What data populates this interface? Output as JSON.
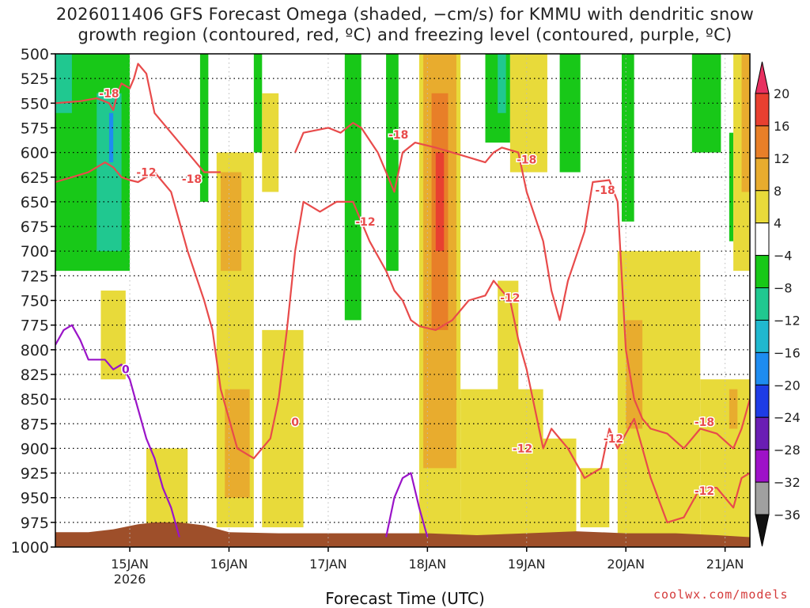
{
  "chart_data": {
    "type": "heatmap",
    "title_line1": "2026011406 GFS Forecast Omega (shaded, −cm/s) for KMMU with dendritic snow",
    "title_line2": "growth region (contoured, red, ºC) and freezing level (contoured, purple, ºC)",
    "xlabel": "Forecast Time (UTC)",
    "credit": "coolwx.com/models",
    "x_range_hours": [
      6,
      174
    ],
    "x_ticks": [
      {
        "hour": 24,
        "label": "15JAN",
        "sublabel": "2026"
      },
      {
        "hour": 48,
        "label": "16JAN"
      },
      {
        "hour": 72,
        "label": "17JAN"
      },
      {
        "hour": 96,
        "label": "18JAN"
      },
      {
        "hour": 120,
        "label": "19JAN"
      },
      {
        "hour": 144,
        "label": "20JAN"
      },
      {
        "hour": 168,
        "label": "21JAN"
      }
    ],
    "y_range_hpa": [
      1000,
      500
    ],
    "y_ticks": [
      500,
      525,
      550,
      575,
      600,
      625,
      650,
      675,
      700,
      725,
      750,
      775,
      800,
      825,
      850,
      875,
      900,
      925,
      950,
      975,
      1000
    ],
    "colorbar": {
      "labels": [
        "20",
        "16",
        "12",
        "8",
        "4",
        "−4",
        "−8",
        "−12",
        "−16",
        "−20",
        "−24",
        "−28",
        "−32",
        "−36"
      ],
      "colors_top_to_bottom": [
        "#e83060",
        "#e84030",
        "#e87f28",
        "#e8ac2e",
        "#e8da3a",
        "#ffffff",
        "#18c818",
        "#20c890",
        "#20b8cf",
        "#1e8cf0",
        "#1e3ce6",
        "#6a1eb4",
        "#9e12c8",
        "#a0a0a0",
        "#111111"
      ]
    },
    "shading_regions": [
      {
        "color": "#18c818",
        "h0": 6,
        "h1": 24,
        "p0": 500,
        "p1": 720
      },
      {
        "color": "#20c890",
        "h0": 6,
        "h1": 10,
        "p0": 500,
        "p1": 560
      },
      {
        "color": "#20c890",
        "h0": 16,
        "h1": 22,
        "p0": 540,
        "p1": 700
      },
      {
        "color": "#1e8cf0",
        "h0": 19,
        "h1": 20,
        "p0": 560,
        "p1": 610
      },
      {
        "color": "#18c818",
        "h0": 41,
        "h1": 43,
        "p0": 500,
        "p1": 650
      },
      {
        "color": "#18c818",
        "h0": 54,
        "h1": 56,
        "p0": 500,
        "p1": 600
      },
      {
        "color": "#18c818",
        "h0": 76,
        "h1": 80,
        "p0": 500,
        "p1": 770
      },
      {
        "color": "#18c818",
        "h0": 86,
        "h1": 89,
        "p0": 500,
        "p1": 720
      },
      {
        "color": "#18c818",
        "h0": 110,
        "h1": 116,
        "p0": 500,
        "p1": 590
      },
      {
        "color": "#20c890",
        "h0": 113,
        "h1": 115,
        "p0": 500,
        "p1": 560
      },
      {
        "color": "#18c818",
        "h0": 128,
        "h1": 133,
        "p0": 500,
        "p1": 620
      },
      {
        "color": "#18c818",
        "h0": 143,
        "h1": 146,
        "p0": 500,
        "p1": 670
      },
      {
        "color": "#20c890",
        "h0": 163,
        "h1": 165,
        "p0": 500,
        "p1": 580
      },
      {
        "color": "#18c818",
        "h0": 160,
        "h1": 167,
        "p0": 500,
        "p1": 600
      },
      {
        "color": "#18c818",
        "h0": 169,
        "h1": 170,
        "p0": 580,
        "p1": 690
      },
      {
        "color": "#e8da3a",
        "h0": 94,
        "h1": 104,
        "p0": 500,
        "p1": 990
      },
      {
        "color": "#e8ac2e",
        "h0": 95,
        "h1": 103,
        "p0": 500,
        "p1": 920
      },
      {
        "color": "#e87f28",
        "h0": 97,
        "h1": 101,
        "p0": 540,
        "p1": 780
      },
      {
        "color": "#e84030",
        "h0": 98,
        "h1": 100,
        "p0": 600,
        "p1": 700
      },
      {
        "color": "#e8da3a",
        "h0": 45,
        "h1": 54,
        "p0": 600,
        "p1": 980
      },
      {
        "color": "#e8ac2e",
        "h0": 46,
        "h1": 51,
        "p0": 620,
        "p1": 720
      },
      {
        "color": "#e8ac2e",
        "h0": 47,
        "h1": 53,
        "p0": 840,
        "p1": 950
      },
      {
        "color": "#e8da3a",
        "h0": 56,
        "h1": 66,
        "p0": 780,
        "p1": 980
      },
      {
        "color": "#e8da3a",
        "h0": 104,
        "h1": 124,
        "p0": 840,
        "p1": 990
      },
      {
        "color": "#e8da3a",
        "h0": 113,
        "h1": 118,
        "p0": 730,
        "p1": 860
      },
      {
        "color": "#e8da3a",
        "h0": 123,
        "h1": 132,
        "p0": 890,
        "p1": 990
      },
      {
        "color": "#e8da3a",
        "h0": 133,
        "h1": 140,
        "p0": 920,
        "p1": 980
      },
      {
        "color": "#e8da3a",
        "h0": 142,
        "h1": 162,
        "p0": 700,
        "p1": 990
      },
      {
        "color": "#e8ac2e",
        "h0": 144,
        "h1": 148,
        "p0": 770,
        "p1": 880
      },
      {
        "color": "#e8da3a",
        "h0": 162,
        "h1": 174,
        "p0": 830,
        "p1": 990
      },
      {
        "color": "#e8ac2e",
        "h0": 169,
        "h1": 171,
        "p0": 840,
        "p1": 880
      },
      {
        "color": "#e8da3a",
        "h0": 170,
        "h1": 174,
        "p0": 500,
        "p1": 720
      },
      {
        "color": "#e8ac2e",
        "h0": 172,
        "h1": 174,
        "p0": 500,
        "p1": 640
      },
      {
        "color": "#e8da3a",
        "h0": 17,
        "h1": 23,
        "p0": 740,
        "p1": 830
      },
      {
        "color": "#e8da3a",
        "h0": 28,
        "h1": 38,
        "p0": 900,
        "p1": 980
      },
      {
        "color": "#e8da3a",
        "h0": 116,
        "h1": 125,
        "p0": 500,
        "p1": 620
      },
      {
        "color": "#e8da3a",
        "h0": 56,
        "h1": 60,
        "p0": 540,
        "p1": 640
      }
    ],
    "contours": [
      {
        "name": "dgz-minus-18-upper",
        "color": "#e84b4b",
        "points": [
          [
            6,
            550
          ],
          [
            12,
            548
          ],
          [
            16,
            545
          ],
          [
            19,
            550
          ],
          [
            20,
            557
          ],
          [
            21,
            540
          ],
          [
            22,
            530
          ],
          [
            24,
            535
          ],
          [
            25,
            525
          ],
          [
            26,
            510
          ],
          [
            28,
            520
          ],
          [
            30,
            560
          ],
          [
            34,
            580
          ],
          [
            38,
            600
          ],
          [
            42,
            620
          ],
          [
            46,
            620
          ]
        ]
      },
      {
        "name": "dgz-minus-18-mid",
        "color": "#e84b4b",
        "points": [
          [
            64,
            600
          ],
          [
            66,
            580
          ],
          [
            72,
            575
          ],
          [
            75,
            580
          ],
          [
            78,
            570
          ],
          [
            80,
            575
          ],
          [
            84,
            600
          ],
          [
            86,
            620
          ],
          [
            88,
            640
          ],
          [
            90,
            600
          ],
          [
            93,
            590
          ],
          [
            98,
            595
          ],
          [
            102,
            600
          ],
          [
            106,
            605
          ],
          [
            110,
            610
          ],
          [
            112,
            600
          ],
          [
            114,
            595
          ],
          [
            118,
            600
          ],
          [
            120,
            640
          ],
          [
            124,
            690
          ],
          [
            126,
            740
          ],
          [
            128,
            770
          ],
          [
            130,
            730
          ],
          [
            134,
            680
          ],
          [
            136,
            630
          ],
          [
            140,
            628
          ],
          [
            142,
            650
          ],
          [
            144,
            800
          ],
          [
            146,
            850
          ]
        ]
      },
      {
        "name": "dgz-minus-18-lower",
        "color": "#e84b4b",
        "points": [
          [
            146,
            850
          ],
          [
            148,
            870
          ],
          [
            150,
            880
          ],
          [
            154,
            885
          ],
          [
            158,
            900
          ],
          [
            162,
            880
          ],
          [
            166,
            885
          ],
          [
            170,
            900
          ],
          [
            172,
            880
          ],
          [
            174,
            850
          ]
        ]
      },
      {
        "name": "dgz-minus-12-upper",
        "color": "#e84b4b",
        "points": [
          [
            6,
            630
          ],
          [
            10,
            625
          ],
          [
            14,
            620
          ],
          [
            18,
            610
          ],
          [
            20,
            615
          ],
          [
            22,
            625
          ],
          [
            24,
            628
          ],
          [
            26,
            630
          ],
          [
            30,
            620
          ],
          [
            34,
            640
          ],
          [
            38,
            700
          ],
          [
            42,
            750
          ],
          [
            44,
            780
          ],
          [
            46,
            840
          ],
          [
            48,
            870
          ],
          [
            50,
            900
          ],
          [
            54,
            910
          ],
          [
            58,
            890
          ],
          [
            60,
            850
          ],
          [
            62,
            780
          ],
          [
            64,
            700
          ],
          [
            66,
            650
          ],
          [
            70,
            660
          ],
          [
            74,
            650
          ],
          [
            78,
            650
          ],
          [
            82,
            690
          ],
          [
            86,
            720
          ],
          [
            88,
            740
          ],
          [
            90,
            750
          ],
          [
            92,
            770
          ],
          [
            94,
            776
          ],
          [
            98,
            780
          ],
          [
            102,
            770
          ],
          [
            106,
            750
          ],
          [
            110,
            745
          ],
          [
            112,
            730
          ],
          [
            116,
            750
          ],
          [
            118,
            790
          ],
          [
            120,
            820
          ],
          [
            124,
            900
          ],
          [
            126,
            880
          ],
          [
            130,
            900
          ],
          [
            134,
            930
          ],
          [
            138,
            920
          ],
          [
            140,
            880
          ],
          [
            142,
            900
          ],
          [
            146,
            870
          ],
          [
            150,
            930
          ],
          [
            154,
            975
          ],
          [
            158,
            970
          ],
          [
            162,
            940
          ],
          [
            166,
            940
          ],
          [
            170,
            960
          ],
          [
            172,
            930
          ],
          [
            174,
            925
          ]
        ]
      },
      {
        "name": "freezing-level-0",
        "color": "#9a14c8",
        "points": [
          [
            6,
            795
          ],
          [
            8,
            780
          ],
          [
            10,
            775
          ],
          [
            12,
            790
          ],
          [
            14,
            810
          ],
          [
            18,
            810
          ],
          [
            20,
            820
          ],
          [
            22,
            815
          ],
          [
            24,
            830
          ],
          [
            26,
            860
          ],
          [
            28,
            890
          ],
          [
            30,
            910
          ],
          [
            32,
            940
          ],
          [
            34,
            960
          ],
          [
            36,
            990
          ]
        ]
      },
      {
        "name": "freezing-level-0-bump",
        "color": "#9a14c8",
        "points": [
          [
            86,
            990
          ],
          [
            88,
            950
          ],
          [
            90,
            930
          ],
          [
            92,
            925
          ],
          [
            94,
            960
          ],
          [
            96,
            990
          ]
        ]
      }
    ],
    "contour_labels": [
      {
        "text": "-18",
        "hour": 19,
        "hpa": 540,
        "color": "#e84b4b"
      },
      {
        "text": "-12",
        "hour": 28,
        "hpa": 620,
        "color": "#e84b4b"
      },
      {
        "text": "-18",
        "hour": 39,
        "hpa": 627,
        "color": "#e84b4b"
      },
      {
        "text": "-18",
        "hour": 89,
        "hpa": 582,
        "color": "#e84b4b"
      },
      {
        "text": "-18",
        "hour": 120,
        "hpa": 607,
        "color": "#e84b4b"
      },
      {
        "text": "-18",
        "hour": 139,
        "hpa": 638,
        "color": "#e84b4b"
      },
      {
        "text": "-12",
        "hour": 81,
        "hpa": 670,
        "color": "#e84b4b"
      },
      {
        "text": "-12",
        "hour": 116,
        "hpa": 747,
        "color": "#e84b4b"
      },
      {
        "text": "-12",
        "hour": 119,
        "hpa": 900,
        "color": "#e84b4b"
      },
      {
        "text": "-12",
        "hour": 141,
        "hpa": 890,
        "color": "#e84b4b"
      },
      {
        "text": "-18",
        "hour": 163,
        "hpa": 873,
        "color": "#e84b4b"
      },
      {
        "text": "-12",
        "hour": 163,
        "hpa": 943,
        "color": "#e84b4b"
      },
      {
        "text": "0",
        "hour": 23,
        "hpa": 820,
        "color": "#9a14c8"
      },
      {
        "text": "0",
        "hour": 64,
        "hpa": 873,
        "color": "#e84b4b"
      }
    ],
    "terrain": {
      "color": "#9e4f2a",
      "points": [
        [
          6,
          985
        ],
        [
          14,
          985
        ],
        [
          20,
          982
        ],
        [
          26,
          977
        ],
        [
          30,
          975
        ],
        [
          36,
          975
        ],
        [
          42,
          978
        ],
        [
          48,
          985
        ],
        [
          60,
          986
        ],
        [
          72,
          986
        ],
        [
          84,
          986
        ],
        [
          96,
          986
        ],
        [
          108,
          988
        ],
        [
          120,
          986
        ],
        [
          132,
          984
        ],
        [
          144,
          986
        ],
        [
          156,
          986
        ],
        [
          166,
          988
        ],
        [
          174,
          990
        ]
      ]
    }
  }
}
